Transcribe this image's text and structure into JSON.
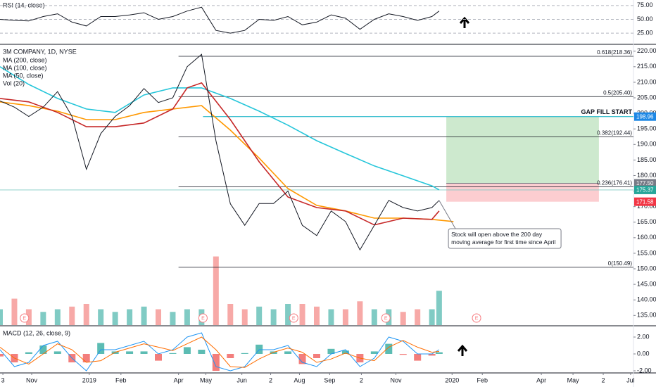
{
  "chart_data": [
    {
      "type": "line",
      "title": "RSI (14, close)",
      "x": [
        0,
        10,
        20,
        30,
        40,
        50,
        60,
        70,
        80,
        90,
        100,
        110,
        120,
        130,
        140,
        150,
        160,
        170,
        180,
        190,
        200,
        210,
        220,
        230,
        240,
        250,
        260,
        270,
        280,
        290,
        300,
        305
      ],
      "series": [
        {
          "color": "#131722",
          "values": [
            50,
            48,
            47,
            55,
            60,
            45,
            38,
            55,
            55,
            58,
            62,
            50,
            55,
            65,
            72,
            30,
            25,
            30,
            50,
            48,
            55,
            40,
            45,
            58,
            52,
            32,
            50,
            60,
            55,
            48,
            55,
            65
          ]
        }
      ],
      "ylim": [
        6,
        85
      ],
      "yticks": [
        {
          "value": 75,
          "label": "75.00"
        },
        {
          "value": 50,
          "label": "50.00"
        },
        {
          "value": 25,
          "label": "25.00"
        }
      ]
    },
    {
      "type": "line",
      "title": "3M COMPANY, 1D, NYSE",
      "xlim": [
        0,
        440
      ],
      "x": [
        0,
        10,
        20,
        30,
        40,
        50,
        60,
        70,
        80,
        90,
        100,
        110,
        120,
        130,
        140,
        150,
        160,
        170,
        180,
        190,
        200,
        210,
        220,
        230,
        240,
        250,
        260,
        270,
        280,
        290,
        300,
        305
      ],
      "values": [
        204,
        202,
        199,
        202,
        207,
        199,
        182,
        193.5,
        199,
        202.5,
        208,
        203.5,
        205,
        215,
        219,
        191.2,
        170.9,
        164,
        171,
        171,
        175,
        164,
        160.7,
        168.6,
        165.2,
        156.1,
        164,
        172,
        169.7,
        168.6,
        169.7,
        172
      ],
      "color": "#131722",
      "series": [
        {
          "name": "MA (200, close)",
          "color": "#26c6da",
          "x": [
            0,
            20,
            40,
            60,
            80,
            100,
            120,
            140,
            160,
            180,
            200,
            220,
            240,
            260,
            280,
            300,
            305
          ],
          "values": [
            215,
            209.3,
            204.8,
            201.4,
            200.3,
            205.9,
            208.2,
            208.2,
            204.8,
            200.7,
            196.2,
            191.2,
            187.1,
            183.1,
            179.9,
            176.7,
            175.4
          ]
        },
        {
          "name": "MA (100, close)",
          "color": "#ff9800",
          "x": [
            0,
            20,
            40,
            60,
            80,
            100,
            120,
            140,
            160,
            180,
            200,
            220,
            240,
            260,
            280,
            300,
            315
          ],
          "values": [
            203.7,
            202.5,
            200.7,
            198,
            198,
            200.3,
            201.4,
            202.5,
            194.6,
            185.6,
            175.8,
            170.4,
            168.6,
            166.3,
            166.3,
            165.9,
            165.2
          ]
        },
        {
          "name": "MA (50, close)",
          "color": "#c62828",
          "x": [
            0,
            20,
            40,
            60,
            80,
            100,
            120,
            130,
            140,
            160,
            180,
            200,
            220,
            240,
            260,
            280,
            300,
            305
          ],
          "values": [
            204.8,
            203.7,
            200.3,
            195.7,
            195.7,
            196.9,
            201.4,
            208.2,
            209.8,
            198,
            184.4,
            173.1,
            169.7,
            168.6,
            164.1,
            166.3,
            165.9,
            168.6
          ]
        }
      ],
      "volume": {
        "name": "Vol (20)",
        "values": [
          3,
          5,
          3,
          2.5,
          3,
          3.5,
          4,
          3,
          2.5,
          3,
          3.5,
          3,
          2.5,
          3,
          3,
          13,
          4,
          3,
          3.5,
          3,
          4,
          4,
          3.5,
          3,
          3,
          4.5,
          3,
          3,
          2.5,
          3,
          3,
          6.5
        ],
        "ylim": [
          0,
          16
        ],
        "up_color": "#80cbc4",
        "down_color": "#f7a9a7"
      },
      "ylim": [
        131.9,
        221.98
      ],
      "yticks": [
        {
          "value": 220,
          "label": "220.00"
        },
        {
          "value": 215,
          "label": "215.00"
        },
        {
          "value": 210,
          "label": "210.00"
        },
        {
          "value": 205,
          "label": "205.00"
        },
        {
          "value": 200,
          "label": "200.00"
        },
        {
          "value": 195,
          "label": "195.00"
        },
        {
          "value": 190,
          "label": "190.00"
        },
        {
          "value": 185,
          "label": "185.00"
        },
        {
          "value": 180,
          "label": "180.00"
        },
        {
          "value": 175,
          "label": "175.00"
        },
        {
          "value": 170,
          "label": "170.00"
        },
        {
          "value": 165,
          "label": "165.00"
        },
        {
          "value": 160,
          "label": "160.00"
        },
        {
          "value": 155,
          "label": "155.00"
        },
        {
          "value": 150,
          "label": "150.00"
        },
        {
          "value": 145,
          "label": "145.00"
        },
        {
          "value": 140,
          "label": "140.00"
        },
        {
          "value": 135,
          "label": "135.00"
        }
      ],
      "xticks": [
        {
          "value": 2,
          "label": "3"
        },
        {
          "value": 22,
          "label": "Nov"
        },
        {
          "value": 62,
          "label": "2019"
        },
        {
          "value": 84,
          "label": "Feb"
        },
        {
          "value": 124,
          "label": "Apr"
        },
        {
          "value": 143,
          "label": "May"
        },
        {
          "value": 168,
          "label": "Jun"
        },
        {
          "value": 188,
          "label": "2"
        },
        {
          "value": 208,
          "label": "Aug"
        },
        {
          "value": 229,
          "label": "Sep"
        },
        {
          "value": 251,
          "label": "2"
        },
        {
          "value": 275,
          "label": "Nov"
        },
        {
          "value": 314,
          "label": "2020"
        },
        {
          "value": 335,
          "label": "Feb"
        },
        {
          "value": 376,
          "label": "Apr"
        },
        {
          "value": 398,
          "label": "May"
        },
        {
          "value": 419,
          "label": "2"
        },
        {
          "value": 438,
          "label": "Jul"
        }
      ],
      "fib": {
        "x_start": 124,
        "levels": [
          {
            "label": "0.618(218.36)",
            "value": 218.36
          },
          {
            "label": "0.5(205.40)",
            "value": 205.4
          },
          {
            "label": "0.382(192.44)",
            "value": 192.44
          },
          {
            "label": "0.236(176.41)",
            "value": 176.41
          },
          {
            "label": "0(150.49)",
            "value": 150.49
          }
        ]
      },
      "gap_fill": {
        "label": "GAP FILL START",
        "value": 198.96,
        "x_start": 141,
        "color": "#00acc1"
      },
      "price_line": 175.37,
      "position": {
        "target": 198.96,
        "entry": 177.5,
        "stop": 171.58,
        "x": [
          310,
          416
        ]
      },
      "badges": [
        {
          "value": 198.96,
          "label": "198.96",
          "color": "#1e88e5"
        },
        {
          "value": 177.5,
          "label": "177.50",
          "color": "#787b86"
        },
        {
          "value": 175.37,
          "label": "175.37",
          "color": "#26a69a"
        },
        {
          "value": 171.58,
          "label": "171.58",
          "color": "#f23645"
        }
      ],
      "earnings": {
        "x": [
          17,
          141,
          204,
          268,
          331
        ],
        "labels": [
          "E",
          "E",
          "E",
          "E",
          "E"
        ]
      },
      "annotation": "Stock will open above the 200 day moving average for first time since April"
    },
    {
      "type": "macd",
      "title": "MACD (12, 26, close, 9)",
      "x": [
        0,
        10,
        20,
        30,
        40,
        50,
        60,
        70,
        80,
        90,
        100,
        110,
        120,
        130,
        140,
        150,
        160,
        170,
        180,
        190,
        200,
        210,
        220,
        230,
        240,
        250,
        260,
        270,
        280,
        290,
        300,
        305
      ],
      "series": [
        {
          "color": "#2196f3",
          "values": [
            0.5,
            -1.5,
            -1,
            1,
            1.5,
            -0.5,
            -2,
            0.5,
            0.5,
            1,
            1.5,
            0,
            0.5,
            2,
            2.5,
            -1.5,
            -2,
            -1.5,
            0.5,
            0.5,
            1,
            -1,
            -1.5,
            0,
            0.5,
            -1.5,
            -0.5,
            2,
            1.5,
            0,
            0,
            0.5
          ]
        },
        {
          "color": "#ff6d00",
          "values": [
            0.8,
            -0.5,
            -1.2,
            0,
            1.2,
            0.5,
            -1,
            -0.8,
            0.2,
            0.7,
            1.2,
            0.8,
            0.4,
            1.2,
            2,
            0.5,
            -1.5,
            -1.6,
            -0.6,
            0.2,
            0.7,
            0.2,
            -1,
            -0.6,
            0.1,
            -0.5,
            -0.8,
            0.8,
            1.6,
            0.8,
            0.2,
            0.3
          ]
        }
      ],
      "histogram": {
        "values": [
          -0.3,
          -1,
          0.2,
          1,
          0.3,
          -1,
          -1,
          1.3,
          0.3,
          0.3,
          0.3,
          -0.8,
          0.1,
          0.8,
          0.5,
          -2,
          -0.5,
          0.1,
          1.1,
          0.3,
          0.3,
          -1.2,
          -0.5,
          0.6,
          0.4,
          -1,
          0.3,
          1.2,
          -0.1,
          -0.8,
          -0.2,
          0.2
        ],
        "up_color": "#26a69a",
        "down_color": "#ef5350"
      },
      "ylim": [
        -2.25,
        3.25
      ],
      "yticks": [
        {
          "value": 2,
          "label": "2.00"
        },
        {
          "value": 0,
          "label": "0.00"
        },
        {
          "value": -2,
          "label": "-2.00"
        }
      ]
    }
  ]
}
